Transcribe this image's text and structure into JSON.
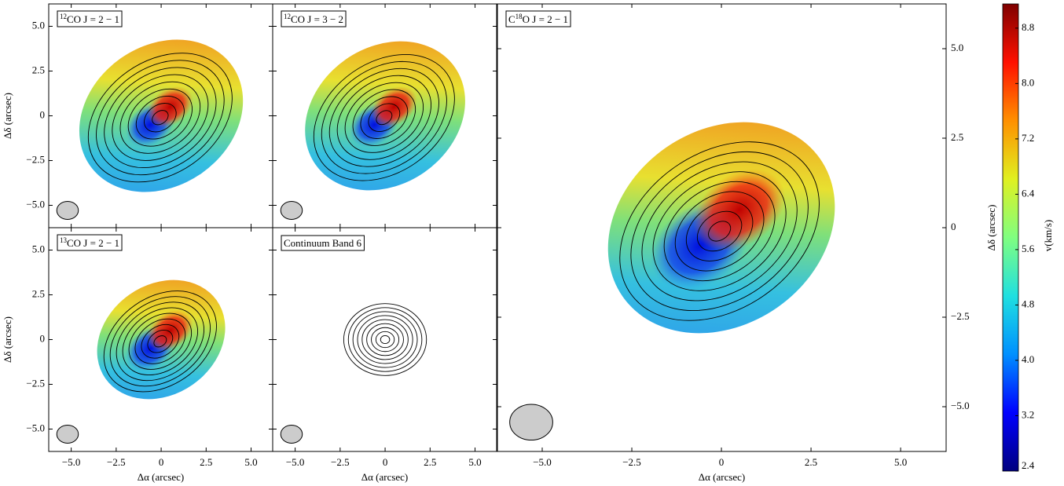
{
  "chart_data": [
    {
      "type": "map",
      "label": [
        {
          "text": "12",
          "sup": true
        },
        {
          "text": "CO J = 2 − 1",
          "sup": false
        }
      ],
      "xlim": [
        -6.25,
        6.2
      ],
      "ylim": [
        -6.25,
        6.25
      ],
      "xticks": [
        -5,
        -2.5,
        0,
        2.5,
        5
      ],
      "xtick_labels": false,
      "yticks": [
        {
          "value": 5,
          "label": "5.0"
        },
        2.5,
        0,
        {
          "value": -2.5,
          "label": "−2.5"
        },
        {
          "value": -5,
          "label": "−5.0"
        }
      ],
      "ytick_labels": true,
      "ylabel": "Δδ (arcsec)"
    },
    {
      "type": "map",
      "label": [
        {
          "text": "12",
          "sup": true
        },
        {
          "text": "CO J = 3 − 2",
          "sup": false
        }
      ],
      "xlim": [
        -6.25,
        6.2
      ],
      "ylim": [
        -6.25,
        6.25
      ],
      "xticks": [
        -5,
        -2.5,
        0,
        2.5,
        5
      ],
      "xtick_labels": false,
      "yticks": [
        5,
        2.5,
        0,
        -2.5,
        -5
      ],
      "ytick_labels": false
    },
    {
      "type": "map",
      "label": [
        {
          "text": "13",
          "sup": true
        },
        {
          "text": "CO J = 2 − 1",
          "sup": false
        }
      ],
      "xlim": [
        -6.25,
        6.2
      ],
      "ylim": [
        -6.25,
        6.25
      ],
      "xticks": [
        {
          "value": -5,
          "label": "−5.0"
        },
        {
          "value": -2.5,
          "label": "−2.5"
        },
        0,
        2.5,
        {
          "value": 5,
          "label": "5.0"
        }
      ],
      "xtick_labels": true,
      "yticks": [
        {
          "value": 5,
          "label": "5.0"
        },
        2.5,
        0,
        {
          "value": -2.5,
          "label": "−2.5"
        },
        {
          "value": -5,
          "label": "−5.0"
        }
      ],
      "ytick_labels": true,
      "xlabel": "Δα (arcsec)",
      "ylabel": "Δδ (arcsec)"
    },
    {
      "type": "continuum",
      "label": [
        {
          "text": "Continuum Band 6",
          "sup": false
        }
      ],
      "xlim": [
        -6.25,
        6.2
      ],
      "ylim": [
        -6.25,
        6.25
      ],
      "xticks": [
        {
          "value": -5,
          "label": "−5.0"
        },
        {
          "value": -2.5,
          "label": "−2.5"
        },
        0,
        2.5,
        {
          "value": 5,
          "label": "5.0"
        }
      ],
      "xtick_labels": true,
      "yticks": [
        5,
        2.5,
        0,
        -2.5,
        -5
      ],
      "ytick_labels": false,
      "xlabel": "Δα (arcsec)"
    },
    {
      "type": "map",
      "label": [
        {
          "text": "C",
          "sup": false
        },
        {
          "text": "18",
          "sup": true
        },
        {
          "text": "O J = 2 − 1",
          "sup": false
        }
      ],
      "xlim": [
        -6.25,
        6.27
      ],
      "ylim": [
        -6.25,
        6.25
      ],
      "xticks": [
        {
          "value": -5,
          "label": "−5.0"
        },
        {
          "value": -2.5,
          "label": "−2.5"
        },
        0,
        2.5,
        {
          "value": 5,
          "label": "5.0"
        }
      ],
      "xtick_labels": true,
      "yticks": [
        {
          "value": 5,
          "label": "5.0"
        },
        2.5,
        0,
        {
          "value": -2.5,
          "label": "−2.5"
        },
        {
          "value": -5,
          "label": "−5.0"
        }
      ],
      "ytick_labels": true,
      "yaxis_side": "right",
      "xlabel": "Δα (arcsec)",
      "ylabel": "Δδ (arcsec)"
    },
    {
      "type": "colorbar",
      "ylabel": "v(km/s)",
      "ylim": [
        2.4,
        9.15
      ],
      "yticks": [
        2.4,
        3.2,
        {
          "value": 4,
          "label": "4.0"
        },
        4.8,
        5.6,
        6.4,
        7.2,
        {
          "value": 8,
          "label": "8.0"
        },
        8.8
      ],
      "colors": [
        "#00007f",
        "#0000ff",
        "#0090ff",
        "#20e0e0",
        "#80ff80",
        "#e0f020",
        "#ff9000",
        "#ff1000",
        "#7f0000"
      ]
    }
  ]
}
